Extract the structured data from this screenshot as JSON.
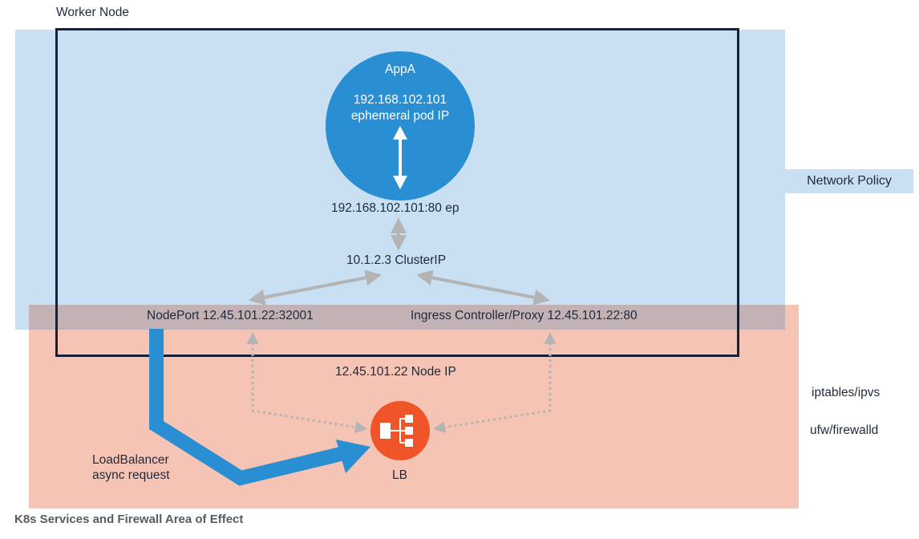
{
  "worker_node_label": "Worker Node",
  "network_policy_label": "Network Policy",
  "pod": {
    "name": "AppA",
    "ip": "192.168.102.101",
    "ip_note": "ephemeral pod IP"
  },
  "endpoint_label": "192.168.102.101:80 ep",
  "cluster_ip_label": "10.1.2.3 ClusterIP",
  "nodeport_label": "NodePort 12.45.101.22:32001",
  "ingress_label": "Ingress Controller/Proxy 12.45.101.22:80",
  "node_ip_label": "12.45.101.22 Node IP",
  "iptables_label": "iptables/ipvs",
  "ufw_label": "ufw/firewalld",
  "lb_label": "LB",
  "lb_request_line1": "LoadBalancer",
  "lb_request_line2": "async request",
  "caption": "K8s Services and Firewall Area of Effect",
  "colors": {
    "network_policy_area": "#c8e0f1",
    "firewall_area": "#f6c4b4",
    "pod": "#2a8fd2",
    "load_balancer": "#f0552a",
    "node_border": "#16203a",
    "connector": "#b4b4b4"
  },
  "icons": [
    "load-balancer-icon"
  ]
}
